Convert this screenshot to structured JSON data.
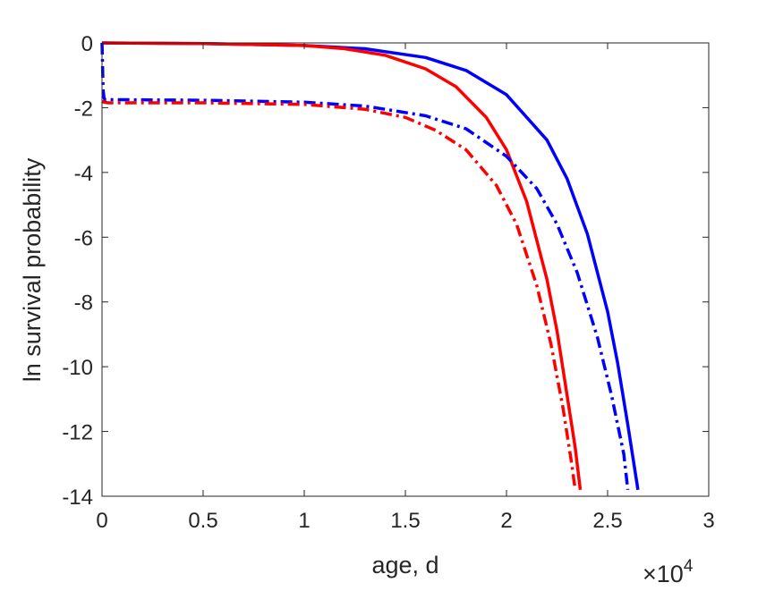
{
  "chart_data": {
    "type": "line",
    "xlabel": "age, d",
    "ylabel": "ln survival probability",
    "x_multiplier": {
      "base": "×10",
      "exponent": "4"
    },
    "xlim": [
      0,
      30000
    ],
    "ylim": [
      -14,
      0
    ],
    "x_ticks": [
      0,
      5000,
      10000,
      15000,
      20000,
      25000,
      30000
    ],
    "x_tick_labels": [
      "0",
      "0.5",
      "1",
      "1.5",
      "2",
      "2.5",
      "3"
    ],
    "y_ticks": [
      -14,
      -12,
      -10,
      -8,
      -6,
      -4,
      -2,
      0
    ],
    "y_tick_labels": [
      "-14",
      "-12",
      "-10",
      "-8",
      "-6",
      "-4",
      "-2",
      "0"
    ],
    "grid": false,
    "legend": "none",
    "series": [
      {
        "color": "#0000ff",
        "style": "solid",
        "x": [
          0,
          5000,
          10000,
          13000,
          16000,
          18000,
          20000,
          22000,
          23000,
          24000,
          25000,
          25500,
          26000,
          26300,
          26500
        ],
        "y": [
          0,
          -0.02,
          -0.08,
          -0.18,
          -0.45,
          -0.85,
          -1.6,
          -3.0,
          -4.2,
          -5.9,
          -8.3,
          -9.9,
          -11.8,
          -13.0,
          -13.8
        ]
      },
      {
        "color": "#ff0000",
        "style": "solid",
        "x": [
          0,
          5000,
          10000,
          12000,
          14000,
          16000,
          17500,
          19000,
          20000,
          21000,
          22000,
          22500,
          23000,
          23400,
          23650
        ],
        "y": [
          0,
          -0.02,
          -0.08,
          -0.18,
          -0.38,
          -0.8,
          -1.35,
          -2.3,
          -3.3,
          -4.9,
          -7.3,
          -8.9,
          -10.9,
          -12.5,
          -13.8
        ]
      },
      {
        "color": "#0000ff",
        "style": "dashdot",
        "x": [
          0,
          20,
          40,
          60,
          100,
          150,
          300,
          5000,
          10000,
          13000,
          16000,
          18000,
          20000,
          21500,
          22500,
          23500,
          24500,
          25200,
          25800,
          26000
        ],
        "y": [
          0,
          -0.5,
          -1.1,
          -1.5,
          -1.7,
          -1.75,
          -1.75,
          -1.77,
          -1.83,
          -1.95,
          -2.25,
          -2.65,
          -3.5,
          -4.5,
          -5.6,
          -7.1,
          -9.1,
          -10.9,
          -12.7,
          -13.8
        ]
      },
      {
        "color": "#ff0000",
        "style": "dashdot",
        "x": [
          0,
          50,
          100,
          200,
          300,
          5000,
          10000,
          13000,
          15000,
          16500,
          18000,
          19500,
          20500,
          21500,
          22200,
          22800,
          23200,
          23400
        ],
        "y": [
          -1.8,
          -1.82,
          -1.83,
          -1.84,
          -1.85,
          -1.85,
          -1.9,
          -2.05,
          -2.3,
          -2.7,
          -3.3,
          -4.4,
          -5.6,
          -7.5,
          -9.3,
          -11.3,
          -12.9,
          -13.8
        ]
      }
    ]
  }
}
